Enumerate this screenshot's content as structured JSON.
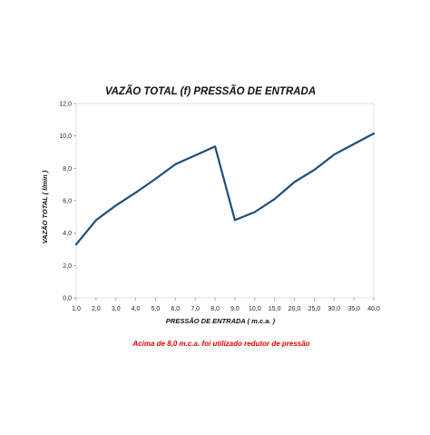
{
  "chart_data": {
    "type": "line",
    "title": "VAZÃO TOTAL (f) PRESSÃO DE ENTRADA",
    "xlabel": "PRESSÃO DE ENTRADA ( m.c.a. )",
    "ylabel": "VAZÃO TOTAL ( l/min )",
    "categories": [
      "1,0",
      "2,0",
      "3,0",
      "4,0",
      "5,0",
      "6,0",
      "7,0",
      "8,0",
      "9,0",
      "10,0",
      "15,0",
      "20,0",
      "25,0",
      "30,0",
      "35,0",
      "40,0"
    ],
    "series": [
      {
        "values": [
          3.3,
          4.8,
          5.7,
          6.5,
          7.35,
          8.25,
          8.8,
          9.35,
          4.8,
          5.3,
          6.1,
          7.15,
          7.9,
          8.85,
          9.5,
          10.15
        ],
        "color": "#1f4e79"
      }
    ],
    "ylim": [
      0,
      12
    ],
    "yticks": [
      "0,0",
      "2,0",
      "4,0",
      "6,0",
      "8,0",
      "10,0",
      "12,0"
    ],
    "grid": false,
    "legend": "none",
    "note": "Acima de 8,0 m.c.a. foi utilizado redutor de pressão",
    "note_color": "#e60000"
  }
}
